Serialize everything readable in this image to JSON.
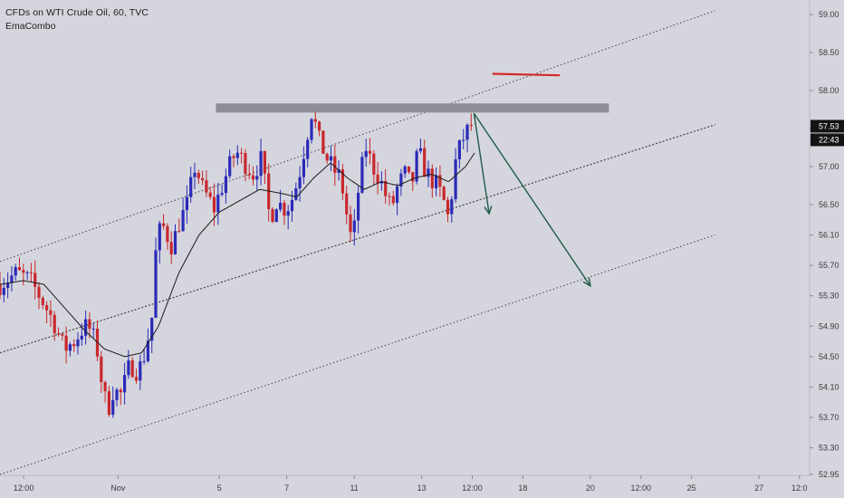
{
  "header": {
    "title": "CFDs on WTI Crude Oil, 60, TVC",
    "indicator": "EmaCombo"
  },
  "colors": {
    "background": "#d5d6dd",
    "bull_candle": "#2a2ab8",
    "bear_candle": "#c8282d",
    "ema_line": "#1a1a1a",
    "channel_line": "#2a2a2a",
    "resistance_zone": "#8e8f96",
    "target_marker": "#d62828",
    "arrow": "#1f5c4a",
    "axis_text": "#3a3a3a",
    "price_badge": "#141414"
  },
  "price_badges": {
    "last_price": "57.53",
    "countdown": "22:43"
  },
  "chart_data": {
    "type": "candlestick",
    "title": "CFDs on WTI Crude Oil, 60, TVC",
    "indicator": "EmaCombo",
    "y_axis": {
      "ylim": [
        52.7,
        59.2
      ],
      "tick_labels": [
        "59.00",
        "58.50",
        "58.00",
        "57.50",
        "57.00",
        "56.50",
        "56.10",
        "55.70",
        "55.30",
        "54.90",
        "54.50",
        "54.10",
        "53.70",
        "53.30",
        "52.95"
      ],
      "tick_values": [
        59.0,
        58.5,
        58.0,
        57.5,
        57.0,
        56.5,
        56.1,
        55.7,
        55.3,
        54.9,
        54.5,
        54.1,
        53.7,
        53.3,
        52.95
      ]
    },
    "x_axis": {
      "tick_labels": [
        "12:00",
        "Nov",
        "5",
        "7",
        "11",
        "13",
        "12:00",
        "18",
        "20",
        "12:00",
        "25",
        "27",
        "12:0"
      ],
      "tick_positions": [
        -1.8,
        1,
        4,
        6,
        8,
        10,
        11.5,
        13,
        15,
        16.5,
        18,
        20,
        21.2
      ],
      "xlim": [
        -2.5,
        21.5
      ],
      "unit": "day index (0 = Oct 31)"
    },
    "price_series": {
      "x_start": -2.5,
      "x_end": 11.55,
      "anchors": [
        [
          -2.5,
          55.45
        ],
        [
          -2.0,
          55.6
        ],
        [
          -1.6,
          55.5
        ],
        [
          -1.2,
          55.2
        ],
        [
          -0.9,
          54.95
        ],
        [
          -0.6,
          54.6
        ],
        [
          -0.3,
          54.7
        ],
        [
          0.0,
          54.9
        ],
        [
          0.2,
          54.85
        ],
        [
          0.4,
          54.55
        ],
        [
          0.55,
          54.05
        ],
        [
          0.7,
          53.8
        ],
        [
          0.85,
          54.05
        ],
        [
          1.1,
          54.0
        ],
        [
          1.35,
          54.4
        ],
        [
          1.6,
          54.3
        ],
        [
          1.8,
          54.55
        ],
        [
          2.0,
          55.0
        ],
        [
          2.15,
          56.1
        ],
        [
          2.35,
          56.2
        ],
        [
          2.6,
          55.95
        ],
        [
          2.8,
          56.25
        ],
        [
          3.05,
          56.5
        ],
        [
          3.3,
          57.05
        ],
        [
          3.45,
          56.75
        ],
        [
          3.65,
          56.6
        ],
        [
          3.85,
          56.45
        ],
        [
          4.05,
          56.7
        ],
        [
          4.3,
          57.0
        ],
        [
          4.5,
          57.2
        ],
        [
          4.75,
          57.05
        ],
        [
          5.0,
          56.9
        ],
        [
          5.25,
          57.1
        ],
        [
          5.5,
          56.3
        ],
        [
          5.7,
          56.55
        ],
        [
          5.9,
          56.45
        ],
        [
          6.1,
          56.5
        ],
        [
          6.35,
          56.85
        ],
        [
          6.55,
          57.3
        ],
        [
          6.75,
          57.75
        ],
        [
          6.95,
          57.35
        ],
        [
          7.2,
          57.1
        ],
        [
          7.4,
          56.95
        ],
        [
          7.6,
          56.85
        ],
        [
          7.8,
          56.3
        ],
        [
          7.95,
          55.95
        ],
        [
          8.15,
          56.8
        ],
        [
          8.35,
          57.25
        ],
        [
          8.55,
          57.0
        ],
        [
          8.75,
          56.85
        ],
        [
          8.95,
          56.6
        ],
        [
          9.1,
          56.45
        ],
        [
          9.3,
          56.75
        ],
        [
          9.5,
          56.9
        ],
        [
          9.7,
          56.75
        ],
        [
          9.9,
          57.2
        ],
        [
          10.1,
          56.95
        ],
        [
          10.25,
          56.85
        ],
        [
          10.45,
          56.75
        ],
        [
          10.65,
          56.55
        ],
        [
          10.8,
          56.3
        ],
        [
          11.0,
          57.05
        ],
        [
          11.2,
          57.35
        ],
        [
          11.4,
          57.5
        ],
        [
          11.55,
          57.6
        ]
      ]
    },
    "ema_anchors": [
      [
        -2.5,
        55.45
      ],
      [
        -1.8,
        55.5
      ],
      [
        -1.2,
        55.45
      ],
      [
        -0.6,
        55.15
      ],
      [
        0.0,
        54.85
      ],
      [
        0.6,
        54.6
      ],
      [
        1.2,
        54.5
      ],
      [
        1.7,
        54.55
      ],
      [
        2.2,
        54.9
      ],
      [
        2.8,
        55.6
      ],
      [
        3.4,
        56.1
      ],
      [
        4.0,
        56.4
      ],
      [
        4.6,
        56.55
      ],
      [
        5.2,
        56.7
      ],
      [
        5.8,
        56.65
      ],
      [
        6.3,
        56.6
      ],
      [
        6.8,
        56.85
      ],
      [
        7.3,
        57.05
      ],
      [
        7.8,
        56.85
      ],
      [
        8.3,
        56.7
      ],
      [
        8.8,
        56.8
      ],
      [
        9.3,
        56.75
      ],
      [
        9.8,
        56.85
      ],
      [
        10.3,
        56.9
      ],
      [
        10.8,
        56.8
      ],
      [
        11.3,
        57.0
      ],
      [
        11.6,
        57.2
      ]
    ],
    "channel_lines": [
      {
        "name": "upper",
        "style": "dotted",
        "x1": -2.5,
        "y1": 55.75,
        "x2": 18.7,
        "y2": 59.05
      },
      {
        "name": "middle",
        "style": "dotted",
        "x1": -2.5,
        "y1": 54.55,
        "x2": 18.7,
        "y2": 57.55
      },
      {
        "name": "lower",
        "style": "dotted",
        "x1": -2.5,
        "y1": 52.95,
        "x2": 18.7,
        "y2": 56.1
      }
    ],
    "resistance_zone": {
      "x1": 3.9,
      "x2": 15.55,
      "y_low": 57.71,
      "y_high": 57.83
    },
    "target_marker": {
      "x1": 12.1,
      "x2": 14.1,
      "y1": 58.22,
      "y2": 58.2
    },
    "arrows": [
      {
        "x1": 11.55,
        "y1": 57.7,
        "x2": 12.0,
        "y2": 56.38
      },
      {
        "x1": 11.55,
        "y1": 57.7,
        "x2": 15.0,
        "y2": 55.43
      }
    ]
  }
}
